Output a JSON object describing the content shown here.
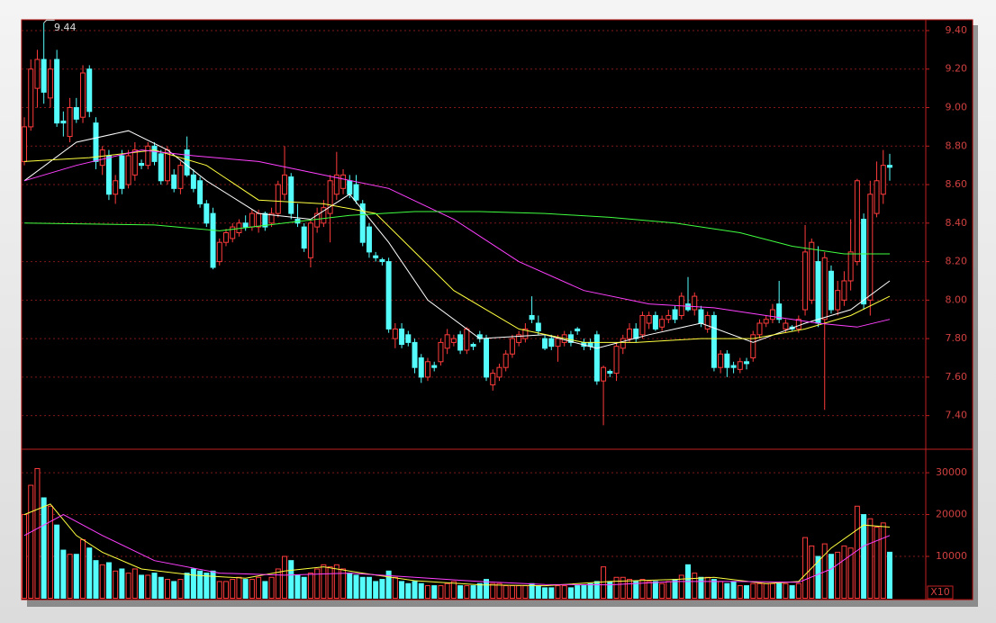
{
  "chart_data": [
    {
      "type": "candlestick",
      "annotation": "9.44",
      "annotation_index": 3,
      "up_color": "#ff3c3c",
      "down_color": "#54fcfc",
      "grid": true,
      "ylim": [
        7.23,
        9.456
      ],
      "yticks": [
        {
          "value": 7.4,
          "label": "7.40"
        },
        {
          "value": 7.6,
          "label": "7.60"
        },
        {
          "value": 7.8,
          "label": "7.80"
        },
        {
          "value": 8.0,
          "label": "8.00"
        },
        {
          "value": 8.2,
          "label": "8.20"
        },
        {
          "value": 8.4,
          "label": "8.40"
        },
        {
          "value": 8.6,
          "label": "8.60"
        },
        {
          "value": 8.8,
          "label": "8.80"
        },
        {
          "value": 9.0,
          "label": "9.00"
        },
        {
          "value": 9.2,
          "label": "9.20"
        },
        {
          "value": 9.4,
          "label": "9.40"
        }
      ],
      "ohlc": [
        [
          8.72,
          8.95,
          8.7,
          8.9
        ],
        [
          8.9,
          9.25,
          8.88,
          9.2
        ],
        [
          9.1,
          9.3,
          9.0,
          9.25
        ],
        [
          9.25,
          9.44,
          9.02,
          9.08
        ],
        [
          9.05,
          9.25,
          9.0,
          9.2
        ],
        [
          9.25,
          9.3,
          8.9,
          8.92
        ],
        [
          8.93,
          8.98,
          8.85,
          8.92
        ],
        [
          8.85,
          9.05,
          8.82,
          9.0
        ],
        [
          9.0,
          9.05,
          8.92,
          8.94
        ],
        [
          8.95,
          9.22,
          8.92,
          9.18
        ],
        [
          9.2,
          9.22,
          8.95,
          8.98
        ],
        [
          8.92,
          8.95,
          8.68,
          8.72
        ],
        [
          8.7,
          8.8,
          8.65,
          8.78
        ],
        [
          8.75,
          8.78,
          8.52,
          8.55
        ],
        [
          8.55,
          8.65,
          8.5,
          8.62
        ],
        [
          8.75,
          8.78,
          8.55,
          8.58
        ],
        [
          8.6,
          8.78,
          8.58,
          8.75
        ],
        [
          8.65,
          8.82,
          8.62,
          8.78
        ],
        [
          8.71,
          8.73,
          8.68,
          8.7
        ],
        [
          8.7,
          8.82,
          8.68,
          8.8
        ],
        [
          8.8,
          8.82,
          8.7,
          8.72
        ],
        [
          8.76,
          8.78,
          8.6,
          8.62
        ],
        [
          8.62,
          8.8,
          8.6,
          8.78
        ],
        [
          8.65,
          8.68,
          8.56,
          8.58
        ],
        [
          8.58,
          8.72,
          8.55,
          8.7
        ],
        [
          8.78,
          8.85,
          8.64,
          8.65
        ],
        [
          8.65,
          8.68,
          8.56,
          8.58
        ],
        [
          8.62,
          8.64,
          8.48,
          8.5
        ],
        [
          8.5,
          8.52,
          8.38,
          8.4
        ],
        [
          8.45,
          8.48,
          8.16,
          8.17
        ],
        [
          8.2,
          8.32,
          8.18,
          8.3
        ],
        [
          8.3,
          8.37,
          8.28,
          8.35
        ],
        [
          8.32,
          8.4,
          8.3,
          8.38
        ],
        [
          8.35,
          8.42,
          8.33,
          8.4
        ],
        [
          8.4,
          8.44,
          8.36,
          8.38
        ],
        [
          8.38,
          8.47,
          8.36,
          8.45
        ],
        [
          8.38,
          8.47,
          8.35,
          8.45
        ],
        [
          8.45,
          8.46,
          8.36,
          8.38
        ],
        [
          8.4,
          8.48,
          8.38,
          8.45
        ],
        [
          8.45,
          8.62,
          8.43,
          8.6
        ],
        [
          8.55,
          8.8,
          8.52,
          8.65
        ],
        [
          8.64,
          8.66,
          8.42,
          8.45
        ],
        [
          8.42,
          8.5,
          8.38,
          8.4
        ],
        [
          8.38,
          8.4,
          8.25,
          8.27
        ],
        [
          8.22,
          8.42,
          8.17,
          8.4
        ],
        [
          8.38,
          8.48,
          8.35,
          8.45
        ],
        [
          8.4,
          8.52,
          8.38,
          8.48
        ],
        [
          8.45,
          8.65,
          8.3,
          8.62
        ],
        [
          8.55,
          8.77,
          8.52,
          8.65
        ],
        [
          8.58,
          8.68,
          8.55,
          8.65
        ],
        [
          8.62,
          8.65,
          8.53,
          8.55
        ],
        [
          8.6,
          8.65,
          8.5,
          8.52
        ],
        [
          8.5,
          8.52,
          8.28,
          8.3
        ],
        [
          8.38,
          8.4,
          8.22,
          8.25
        ],
        [
          8.23,
          8.25,
          8.2,
          8.22
        ],
        [
          8.21,
          8.22,
          8.18,
          8.2
        ],
        [
          8.2,
          8.22,
          7.83,
          7.85
        ],
        [
          7.8,
          7.88,
          7.75,
          7.85
        ],
        [
          7.85,
          7.88,
          7.75,
          7.77
        ],
        [
          7.82,
          7.84,
          7.76,
          7.78
        ],
        [
          7.78,
          7.8,
          7.62,
          7.65
        ],
        [
          7.7,
          7.72,
          7.57,
          7.6
        ],
        [
          7.6,
          7.7,
          7.58,
          7.68
        ],
        [
          7.66,
          7.68,
          7.63,
          7.65
        ],
        [
          7.68,
          7.8,
          7.66,
          7.78
        ],
        [
          7.75,
          7.85,
          7.72,
          7.82
        ],
        [
          7.78,
          7.82,
          7.76,
          7.8
        ],
        [
          7.82,
          7.84,
          7.72,
          7.74
        ],
        [
          7.74,
          7.86,
          7.72,
          7.85
        ],
        [
          7.77,
          7.78,
          7.74,
          7.76
        ],
        [
          7.82,
          7.84,
          7.78,
          7.8
        ],
        [
          7.8,
          7.82,
          7.58,
          7.6
        ],
        [
          7.56,
          7.64,
          7.53,
          7.62
        ],
        [
          7.6,
          7.67,
          7.58,
          7.65
        ],
        [
          7.65,
          7.74,
          7.63,
          7.72
        ],
        [
          7.72,
          7.82,
          7.7,
          7.8
        ],
        [
          7.78,
          7.84,
          7.76,
          7.82
        ],
        [
          7.8,
          7.88,
          7.78,
          7.85
        ],
        [
          7.92,
          8.02,
          7.88,
          7.9
        ],
        [
          7.88,
          7.92,
          7.82,
          7.84
        ],
        [
          7.8,
          7.82,
          7.74,
          7.75
        ],
        [
          7.8,
          7.82,
          7.74,
          7.76
        ],
        [
          7.76,
          7.82,
          7.68,
          7.8
        ],
        [
          7.78,
          7.84,
          7.76,
          7.82
        ],
        [
          7.82,
          7.84,
          7.76,
          7.78
        ],
        [
          7.85,
          7.86,
          7.82,
          7.84
        ],
        [
          7.78,
          7.8,
          7.74,
          7.76
        ],
        [
          7.78,
          7.8,
          7.74,
          7.76
        ],
        [
          7.82,
          7.84,
          7.56,
          7.58
        ],
        [
          7.58,
          7.66,
          7.35,
          7.65
        ],
        [
          7.63,
          7.64,
          7.6,
          7.62
        ],
        [
          7.62,
          7.78,
          7.58,
          7.76
        ],
        [
          7.75,
          7.82,
          7.72,
          7.8
        ],
        [
          7.8,
          7.88,
          7.78,
          7.85
        ],
        [
          7.85,
          7.88,
          7.78,
          7.8
        ],
        [
          7.82,
          7.94,
          7.8,
          7.92
        ],
        [
          7.88,
          7.94,
          7.85,
          7.92
        ],
        [
          7.92,
          7.94,
          7.84,
          7.85
        ],
        [
          7.86,
          7.92,
          7.84,
          7.9
        ],
        [
          7.9,
          7.95,
          7.88,
          7.92
        ],
        [
          7.95,
          7.97,
          7.88,
          7.9
        ],
        [
          7.92,
          8.04,
          7.9,
          8.02
        ],
        [
          7.98,
          8.12,
          7.94,
          7.95
        ],
        [
          7.95,
          8.04,
          7.92,
          8.02
        ],
        [
          7.95,
          7.97,
          7.86,
          7.88
        ],
        [
          7.85,
          7.94,
          7.83,
          7.92
        ],
        [
          7.92,
          7.94,
          7.63,
          7.65
        ],
        [
          7.65,
          7.74,
          7.62,
          7.72
        ],
        [
          7.72,
          7.74,
          7.6,
          7.65
        ],
        [
          7.66,
          7.68,
          7.62,
          7.65
        ],
        [
          7.64,
          7.7,
          7.62,
          7.68
        ],
        [
          7.68,
          7.7,
          7.64,
          7.67
        ],
        [
          7.7,
          7.84,
          7.68,
          7.82
        ],
        [
          7.82,
          7.9,
          7.8,
          7.88
        ],
        [
          7.88,
          7.92,
          7.86,
          7.9
        ],
        [
          7.9,
          7.98,
          7.88,
          7.95
        ],
        [
          7.98,
          8.1,
          7.88,
          7.9
        ],
        [
          7.85,
          7.9,
          7.83,
          7.88
        ],
        [
          7.86,
          7.87,
          7.84,
          7.85
        ],
        [
          7.85,
          7.92,
          7.83,
          7.9
        ],
        [
          7.95,
          8.39,
          7.92,
          8.25
        ],
        [
          8.0,
          8.32,
          7.98,
          8.3
        ],
        [
          8.2,
          8.28,
          7.86,
          7.88
        ],
        [
          7.9,
          8.25,
          7.43,
          8.22
        ],
        [
          8.15,
          8.18,
          7.93,
          7.95
        ],
        [
          7.95,
          8.1,
          7.92,
          8.05
        ],
        [
          8.0,
          8.15,
          7.97,
          8.1
        ],
        [
          8.1,
          8.42,
          8.05,
          8.25
        ],
        [
          8.2,
          8.63,
          8.18,
          8.62
        ],
        [
          8.42,
          8.45,
          7.95,
          7.98
        ],
        [
          8.0,
          8.62,
          7.92,
          8.55
        ],
        [
          8.45,
          8.72,
          8.43,
          8.62
        ],
        [
          8.55,
          8.78,
          8.5,
          8.7
        ],
        [
          8.7,
          8.76,
          8.62,
          8.69
        ]
      ],
      "lines": [
        {
          "color": "#ffffff",
          "x": [
            0,
            8,
            16,
            22,
            28,
            36,
            44,
            50,
            56,
            62,
            70,
            80,
            88,
            96,
            104,
            112,
            120,
            127,
            133
          ],
          "values": [
            8.62,
            8.82,
            8.88,
            8.78,
            8.62,
            8.45,
            8.42,
            8.55,
            8.3,
            8.0,
            7.8,
            7.82,
            7.75,
            7.82,
            7.88,
            7.78,
            7.88,
            7.95,
            8.1
          ]
        },
        {
          "color": "#ffff40",
          "x": [
            0,
            10,
            20,
            28,
            36,
            46,
            54,
            60,
            66,
            76,
            86,
            94,
            104,
            112,
            120,
            127,
            133
          ],
          "values": [
            8.72,
            8.74,
            8.78,
            8.7,
            8.52,
            8.5,
            8.45,
            8.25,
            8.05,
            7.85,
            7.78,
            7.78,
            7.8,
            7.8,
            7.85,
            7.92,
            8.02
          ]
        },
        {
          "color": "#ff40ff",
          "x": [
            0,
            8,
            18,
            26,
            36,
            46,
            56,
            66,
            76,
            86,
            96,
            106,
            114,
            122,
            128,
            133
          ],
          "values": [
            8.62,
            8.7,
            8.78,
            8.75,
            8.72,
            8.65,
            8.58,
            8.42,
            8.2,
            8.05,
            7.98,
            7.96,
            7.92,
            7.88,
            7.86,
            7.9
          ]
        },
        {
          "color": "#40ff40",
          "x": [
            0,
            20,
            30,
            40,
            50,
            60,
            70,
            80,
            90,
            100,
            110,
            118,
            126,
            133
          ],
          "values": [
            8.4,
            8.39,
            8.36,
            8.4,
            8.44,
            8.46,
            8.46,
            8.45,
            8.43,
            8.4,
            8.35,
            8.28,
            8.24,
            8.24
          ]
        }
      ]
    },
    {
      "type": "volume",
      "unit": "X10",
      "ylim": [
        0,
        35400
      ],
      "yticks": [
        10000,
        20000,
        30000
      ],
      "grid": true,
      "values": [
        20000,
        27000,
        31000,
        24000,
        22000,
        17500,
        11500,
        10500,
        10500,
        14000,
        12000,
        9000,
        8000,
        8500,
        6500,
        7000,
        6000,
        7000,
        5500,
        5500,
        6000,
        5000,
        4500,
        4000,
        4500,
        6000,
        7000,
        6500,
        6000,
        6500,
        4000,
        4000,
        4500,
        5000,
        4500,
        4500,
        5000,
        4000,
        5000,
        7000,
        10000,
        9000,
        5500,
        5000,
        6000,
        7000,
        8000,
        7500,
        8000,
        7000,
        6000,
        5500,
        5000,
        5000,
        4000,
        4500,
        6500,
        5000,
        4000,
        3500,
        4000,
        3500,
        3000,
        3000,
        3000,
        3500,
        4000,
        3000,
        3000,
        3000,
        3500,
        4500,
        3500,
        3500,
        3000,
        3000,
        3000,
        3000,
        3500,
        3000,
        2500,
        2500,
        3000,
        3000,
        2500,
        3000,
        3000,
        3500,
        4000,
        7500,
        4000,
        5000,
        5000,
        4500,
        4000,
        4500,
        4000,
        4000,
        3500,
        4000,
        4500,
        5500,
        8000,
        6000,
        5000,
        5000,
        4500,
        4000,
        3500,
        4000,
        3000,
        3000,
        3500,
        3500,
        3500,
        3500,
        3500,
        3500,
        3000,
        3500,
        14500,
        12500,
        10000,
        13000,
        10500,
        11000,
        12500,
        12000,
        22000,
        20000,
        19000,
        17000,
        18000,
        11000
      ],
      "lines": [
        {
          "color": "#ffff40",
          "x": [
            0,
            4,
            8,
            12,
            18,
            26,
            34,
            40,
            46,
            52,
            60,
            70,
            80,
            90,
            100,
            106,
            114,
            119,
            124,
            129,
            133
          ],
          "values": [
            20000,
            22500,
            15000,
            11000,
            7000,
            5500,
            4800,
            6500,
            7500,
            6000,
            4200,
            3200,
            3000,
            4000,
            4500,
            5000,
            3500,
            4000,
            12000,
            17500,
            17000
          ]
        },
        {
          "color": "#ff40ff",
          "x": [
            0,
            6,
            12,
            20,
            30,
            40,
            50,
            60,
            70,
            80,
            90,
            100,
            110,
            119,
            124,
            129,
            133
          ],
          "values": [
            15000,
            20000,
            15000,
            9000,
            6000,
            5500,
            6000,
            5000,
            4000,
            3300,
            3200,
            4000,
            4000,
            3800,
            7000,
            12500,
            15000
          ]
        }
      ]
    }
  ]
}
